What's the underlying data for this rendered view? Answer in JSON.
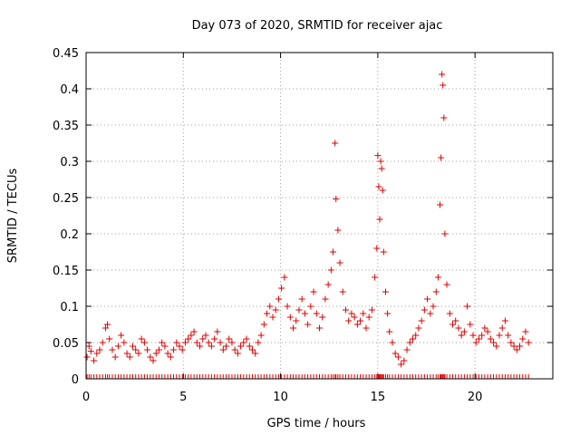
{
  "chart_data": {
    "type": "scatter",
    "title": "Day 073 of 2020, SRMTID for receiver ajac",
    "xlabel": "GPS time / hours",
    "ylabel": "SRMTID / TECUs",
    "xlim": [
      0,
      24
    ],
    "ylim": [
      0,
      0.45
    ],
    "x_ticks": [
      0,
      5,
      10,
      15,
      20
    ],
    "y_ticks": [
      0,
      0.05,
      0.1,
      0.15,
      0.2,
      0.25,
      0.3,
      0.35,
      0.4,
      0.45
    ],
    "grid": true,
    "color": "#e00000",
    "marker": "+",
    "series": [
      {
        "name": "SRMTID",
        "points": [
          [
            0.05,
            0.03
          ],
          [
            0.15,
            0.045
          ],
          [
            0.25,
            0.038
          ],
          [
            0.4,
            0.025
          ],
          [
            0.55,
            0.035
          ],
          [
            0.7,
            0.04
          ],
          [
            0.85,
            0.05
          ],
          [
            1.0,
            0.07
          ],
          [
            1.1,
            0.075
          ],
          [
            1.2,
            0.055
          ],
          [
            1.35,
            0.04
          ],
          [
            1.5,
            0.03
          ],
          [
            1.65,
            0.045
          ],
          [
            1.8,
            0.06
          ],
          [
            1.95,
            0.05
          ],
          [
            2.1,
            0.035
          ],
          [
            2.25,
            0.03
          ],
          [
            2.4,
            0.045
          ],
          [
            2.55,
            0.04
          ],
          [
            2.7,
            0.035
          ],
          [
            2.85,
            0.055
          ],
          [
            3.0,
            0.05
          ],
          [
            3.15,
            0.04
          ],
          [
            3.3,
            0.03
          ],
          [
            3.45,
            0.025
          ],
          [
            3.6,
            0.035
          ],
          [
            3.75,
            0.04
          ],
          [
            3.9,
            0.05
          ],
          [
            4.05,
            0.045
          ],
          [
            4.2,
            0.035
          ],
          [
            4.35,
            0.03
          ],
          [
            4.5,
            0.04
          ],
          [
            4.65,
            0.05
          ],
          [
            4.8,
            0.045
          ],
          [
            4.95,
            0.04
          ],
          [
            5.1,
            0.05
          ],
          [
            5.25,
            0.055
          ],
          [
            5.4,
            0.06
          ],
          [
            5.55,
            0.065
          ],
          [
            5.7,
            0.05
          ],
          [
            5.85,
            0.045
          ],
          [
            6.0,
            0.055
          ],
          [
            6.15,
            0.06
          ],
          [
            6.3,
            0.05
          ],
          [
            6.45,
            0.045
          ],
          [
            6.6,
            0.055
          ],
          [
            6.75,
            0.065
          ],
          [
            6.9,
            0.05
          ],
          [
            7.05,
            0.04
          ],
          [
            7.2,
            0.045
          ],
          [
            7.35,
            0.055
          ],
          [
            7.5,
            0.05
          ],
          [
            7.65,
            0.04
          ],
          [
            7.8,
            0.035
          ],
          [
            7.95,
            0.045
          ],
          [
            8.1,
            0.05
          ],
          [
            8.25,
            0.055
          ],
          [
            8.4,
            0.045
          ],
          [
            8.55,
            0.04
          ],
          [
            8.7,
            0.035
          ],
          [
            8.85,
            0.05
          ],
          [
            9.0,
            0.06
          ],
          [
            9.15,
            0.075
          ],
          [
            9.3,
            0.09
          ],
          [
            9.45,
            0.1
          ],
          [
            9.6,
            0.085
          ],
          [
            9.75,
            0.095
          ],
          [
            9.9,
            0.11
          ],
          [
            10.05,
            0.125
          ],
          [
            10.2,
            0.14
          ],
          [
            10.35,
            0.1
          ],
          [
            10.5,
            0.085
          ],
          [
            10.65,
            0.07
          ],
          [
            10.8,
            0.08
          ],
          [
            10.95,
            0.095
          ],
          [
            11.1,
            0.11
          ],
          [
            11.25,
            0.09
          ],
          [
            11.4,
            0.075
          ],
          [
            11.55,
            0.1
          ],
          [
            11.7,
            0.12
          ],
          [
            11.85,
            0.09
          ],
          [
            12.0,
            0.07
          ],
          [
            12.15,
            0.085
          ],
          [
            12.3,
            0.11
          ],
          [
            12.45,
            0.13
          ],
          [
            12.6,
            0.15
          ],
          [
            12.7,
            0.175
          ],
          [
            12.8,
            0.325
          ],
          [
            12.85,
            0.248
          ],
          [
            12.95,
            0.205
          ],
          [
            13.05,
            0.16
          ],
          [
            13.2,
            0.12
          ],
          [
            13.35,
            0.095
          ],
          [
            13.5,
            0.08
          ],
          [
            13.65,
            0.09
          ],
          [
            13.8,
            0.085
          ],
          [
            13.95,
            0.075
          ],
          [
            14.1,
            0.08
          ],
          [
            14.25,
            0.09
          ],
          [
            14.4,
            0.07
          ],
          [
            14.55,
            0.085
          ],
          [
            14.7,
            0.095
          ],
          [
            14.85,
            0.14
          ],
          [
            14.95,
            0.18
          ],
          [
            15.0,
            0.308
          ],
          [
            15.05,
            0.265
          ],
          [
            15.1,
            0.22
          ],
          [
            15.15,
            0.3
          ],
          [
            15.2,
            0.29
          ],
          [
            15.25,
            0.26
          ],
          [
            15.3,
            0.175
          ],
          [
            15.4,
            0.12
          ],
          [
            15.5,
            0.09
          ],
          [
            15.6,
            0.065
          ],
          [
            15.75,
            0.05
          ],
          [
            15.9,
            0.035
          ],
          [
            16.05,
            0.03
          ],
          [
            16.2,
            0.02
          ],
          [
            16.35,
            0.025
          ],
          [
            16.5,
            0.04
          ],
          [
            16.65,
            0.05
          ],
          [
            16.8,
            0.055
          ],
          [
            16.95,
            0.06
          ],
          [
            17.1,
            0.07
          ],
          [
            17.25,
            0.08
          ],
          [
            17.4,
            0.095
          ],
          [
            17.55,
            0.11
          ],
          [
            17.7,
            0.09
          ],
          [
            17.85,
            0.1
          ],
          [
            18.0,
            0.12
          ],
          [
            18.1,
            0.14
          ],
          [
            18.2,
            0.24
          ],
          [
            18.25,
            0.305
          ],
          [
            18.3,
            0.42
          ],
          [
            18.35,
            0.405
          ],
          [
            18.4,
            0.36
          ],
          [
            18.45,
            0.2
          ],
          [
            18.55,
            0.13
          ],
          [
            18.7,
            0.09
          ],
          [
            18.85,
            0.075
          ],
          [
            19.0,
            0.08
          ],
          [
            19.15,
            0.07
          ],
          [
            19.3,
            0.06
          ],
          [
            19.45,
            0.065
          ],
          [
            19.6,
            0.1
          ],
          [
            19.75,
            0.075
          ],
          [
            19.9,
            0.06
          ],
          [
            20.05,
            0.05
          ],
          [
            20.2,
            0.055
          ],
          [
            20.35,
            0.06
          ],
          [
            20.5,
            0.07
          ],
          [
            20.65,
            0.065
          ],
          [
            20.8,
            0.055
          ],
          [
            20.95,
            0.05
          ],
          [
            21.1,
            0.045
          ],
          [
            21.25,
            0.06
          ],
          [
            21.4,
            0.07
          ],
          [
            21.55,
            0.08
          ],
          [
            21.7,
            0.06
          ],
          [
            21.85,
            0.05
          ],
          [
            22.0,
            0.045
          ],
          [
            22.15,
            0.04
          ],
          [
            22.3,
            0.045
          ],
          [
            22.45,
            0.055
          ],
          [
            22.6,
            0.065
          ],
          [
            22.75,
            0.05
          ]
        ]
      }
    ]
  }
}
